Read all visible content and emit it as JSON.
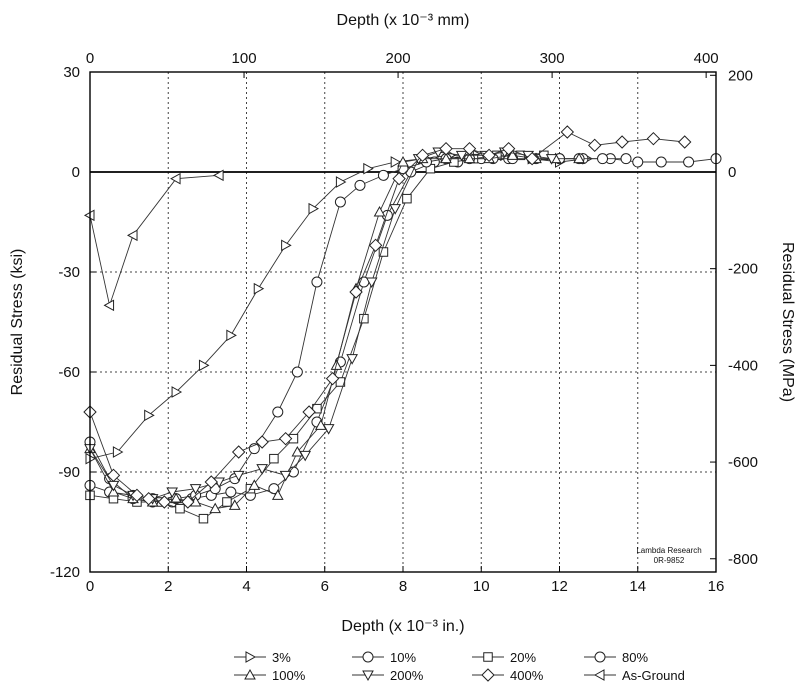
{
  "chart_data": {
    "type": "line",
    "xlabel_bottom": "Depth (x 10⁻³ in.)",
    "xlabel_top": "Depth (x 10⁻³ mm)",
    "ylabel_left": "Residual Stress (ksi)",
    "ylabel_right": "Residual Stress (MPa)",
    "xlim": [
      0,
      16
    ],
    "ylim": [
      -120,
      30
    ],
    "xlim_top": [
      0,
      406.4
    ],
    "ylim_right": [
      -827.4,
      206.8
    ],
    "x_ticks": [
      0,
      2,
      4,
      6,
      8,
      10,
      12,
      14,
      16
    ],
    "y_ticks": [
      30,
      0,
      -30,
      -60,
      -90,
      -120
    ],
    "x_ticks_top": [
      0,
      100,
      200,
      300,
      400
    ],
    "y_ticks_right": [
      200,
      0,
      -200,
      -400,
      -600,
      -800
    ],
    "grid": true,
    "note_lines": [
      "Lambda Research",
      "0R-9852"
    ],
    "legend_position": "bottom",
    "series": [
      {
        "name": "3%",
        "marker": "triangle-right",
        "x": [
          0,
          0.7,
          1.5,
          2.2,
          2.9,
          3.6,
          4.3,
          5.0,
          5.7,
          6.4,
          7.1,
          7.8,
          8.5,
          9.2,
          9.9,
          10.6,
          11.3,
          12.0,
          12.7
        ],
        "y": [
          -86,
          -84,
          -73,
          -66,
          -58,
          -49,
          -35,
          -22,
          -11,
          -3,
          1,
          3,
          4,
          5,
          5,
          5,
          4,
          3,
          4
        ]
      },
      {
        "name": "10%",
        "marker": "circle",
        "x": [
          0,
          0.5,
          1.1,
          1.6,
          2.1,
          2.6,
          3.1,
          3.6,
          4.1,
          4.7,
          5.2,
          5.8,
          6.4,
          7.0,
          7.6,
          8.2,
          8.8,
          9.4,
          10.0,
          10.7,
          11.3,
          12.0,
          12.6,
          13.3,
          14.0,
          14.6,
          15.3,
          16.0
        ],
        "y": [
          -94,
          -96,
          -97,
          -98,
          -99,
          -98,
          -97,
          -96,
          -97,
          -95,
          -90,
          -75,
          -57,
          -33,
          -13,
          0,
          3,
          3,
          4,
          4,
          4,
          4,
          4,
          4,
          3,
          3,
          3,
          4
        ]
      },
      {
        "name": "20%",
        "marker": "square",
        "x": [
          0,
          0.6,
          1.2,
          1.8,
          2.3,
          2.9,
          3.5,
          4.1,
          4.7,
          5.2,
          5.8,
          6.4,
          7.0,
          7.5,
          8.1,
          8.7,
          9.3,
          9.8,
          10.4,
          11.0,
          11.6
        ],
        "y": [
          -97,
          -98,
          -99,
          -99,
          -101,
          -104,
          -99,
          -95,
          -86,
          -80,
          -71,
          -63,
          -44,
          -24,
          -8,
          1,
          3,
          4,
          5,
          5,
          5
        ]
      },
      {
        "name": "80%",
        "marker": "circle",
        "x": [
          0,
          0.5,
          1.1,
          1.6,
          2.2,
          2.7,
          3.2,
          3.7,
          4.2,
          4.8,
          5.3,
          5.8,
          6.4,
          6.9,
          7.5,
          8.0,
          8.6,
          9.1,
          9.7,
          10.3,
          10.8,
          11.4,
          12.0,
          12.5,
          13.1,
          13.7
        ],
        "y": [
          -81,
          -92,
          -98,
          -99,
          -98,
          -97,
          -95,
          -92,
          -83,
          -72,
          -60,
          -33,
          -9,
          -4,
          -1,
          1,
          3,
          4,
          4,
          4,
          4,
          4,
          4,
          4,
          4,
          4
        ]
      },
      {
        "name": "100%",
        "marker": "triangle-up",
        "x": [
          0,
          0.6,
          1.1,
          1.6,
          2.2,
          2.7,
          3.2,
          3.7,
          4.2,
          4.8,
          5.3,
          5.9,
          6.3,
          6.8,
          7.4,
          8.0,
          8.5,
          9.1,
          9.7,
          10.2,
          10.8,
          11.4,
          11.9,
          12.5
        ],
        "y": [
          -83,
          -96,
          -98,
          -99,
          -98,
          -99,
          -101,
          -100,
          -94,
          -97,
          -84,
          -76,
          -58,
          -35,
          -12,
          3,
          4,
          4,
          4,
          4,
          5,
          4,
          4,
          4
        ]
      },
      {
        "name": "200%",
        "marker": "triangle-down",
        "x": [
          0,
          0.6,
          1.1,
          1.6,
          2.1,
          2.7,
          3.3,
          3.8,
          4.4,
          5.0,
          5.5,
          6.1,
          6.7,
          7.2,
          7.8,
          8.4,
          8.9,
          9.5,
          10.1,
          10.6,
          11.2,
          11.8
        ],
        "y": [
          -83,
          -94,
          -97,
          -98,
          -96,
          -95,
          -93,
          -91,
          -89,
          -91,
          -85,
          -77,
          -56,
          -33,
          -11,
          4,
          6,
          5,
          5,
          6,
          5,
          4
        ]
      },
      {
        "name": "400%",
        "marker": "diamond",
        "x": [
          0,
          0.6,
          1.2,
          1.5,
          1.9,
          2.5,
          3.1,
          3.8,
          4.4,
          5.0,
          5.6,
          6.2,
          6.8,
          7.3,
          7.9,
          8.5,
          9.1,
          9.7,
          10.2,
          10.7,
          11.3,
          12.2,
          12.9,
          13.6,
          14.4,
          15.2
        ],
        "y": [
          -72,
          -91,
          -97,
          -98,
          -99,
          -99,
          -93,
          -84,
          -81,
          -80,
          -72,
          -62,
          -36,
          -22,
          -2,
          5,
          7,
          7,
          5,
          7,
          4,
          12,
          8,
          9,
          10,
          9
        ]
      },
      {
        "name": "As-Ground",
        "marker": "triangle-left",
        "x": [
          0,
          0.5,
          1.1,
          2.2,
          3.3
        ],
        "y": [
          -13,
          -40,
          -19,
          -2,
          -1
        ]
      }
    ]
  }
}
